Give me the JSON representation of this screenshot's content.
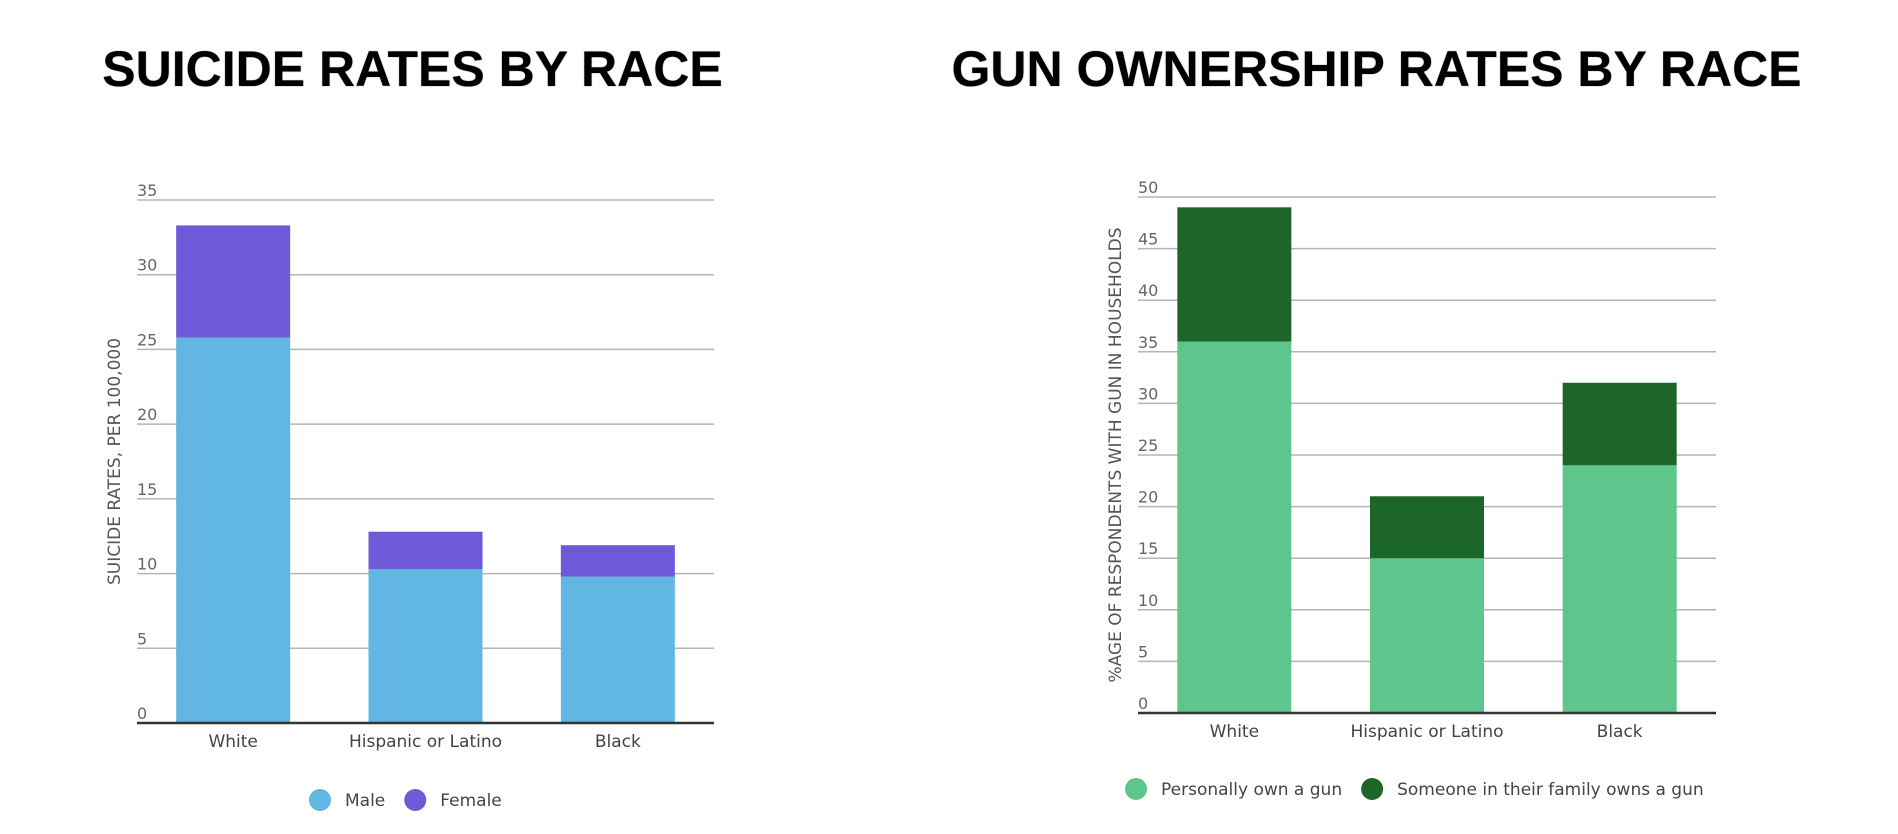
{
  "chart_data": [
    {
      "type": "bar",
      "stacked": true,
      "title": "SUICIDE RATES BY RACE",
      "ylabel": "SUICIDE RATES, PER 100,000",
      "xlabel": "",
      "categories": [
        "White",
        "Hispanic or Latino",
        "Black"
      ],
      "series": [
        {
          "name": "Male",
          "color": "#62b6e2",
          "values": [
            25.8,
            10.3,
            9.8
          ]
        },
        {
          "name": "Female",
          "color": "#6e5ad9",
          "values": [
            7.5,
            2.5,
            2.1
          ]
        }
      ],
      "ylim": [
        0,
        35
      ],
      "yticks": [
        0,
        5,
        10,
        15,
        20,
        25,
        30,
        35
      ],
      "grid": true,
      "legend": "bottom"
    },
    {
      "type": "bar",
      "stacked": true,
      "title": "GUN OWNERSHIP RATES BY RACE",
      "ylabel": "%AGE OF RESPONDENTS WITH GUN IN HOUSEHOLDS",
      "xlabel": "",
      "categories": [
        "White",
        "Hispanic or Latino",
        "Black"
      ],
      "series": [
        {
          "name": "Personally own a gun",
          "color": "#5ec68c",
          "values": [
            36,
            15,
            24
          ]
        },
        {
          "name": "Someone in their family owns a gun",
          "color": "#1c6628",
          "values": [
            13,
            6,
            8
          ]
        }
      ],
      "ylim": [
        0,
        50
      ],
      "yticks": [
        0,
        5,
        10,
        15,
        20,
        25,
        30,
        35,
        40,
        45,
        50
      ],
      "grid": true,
      "legend": "bottom"
    }
  ]
}
